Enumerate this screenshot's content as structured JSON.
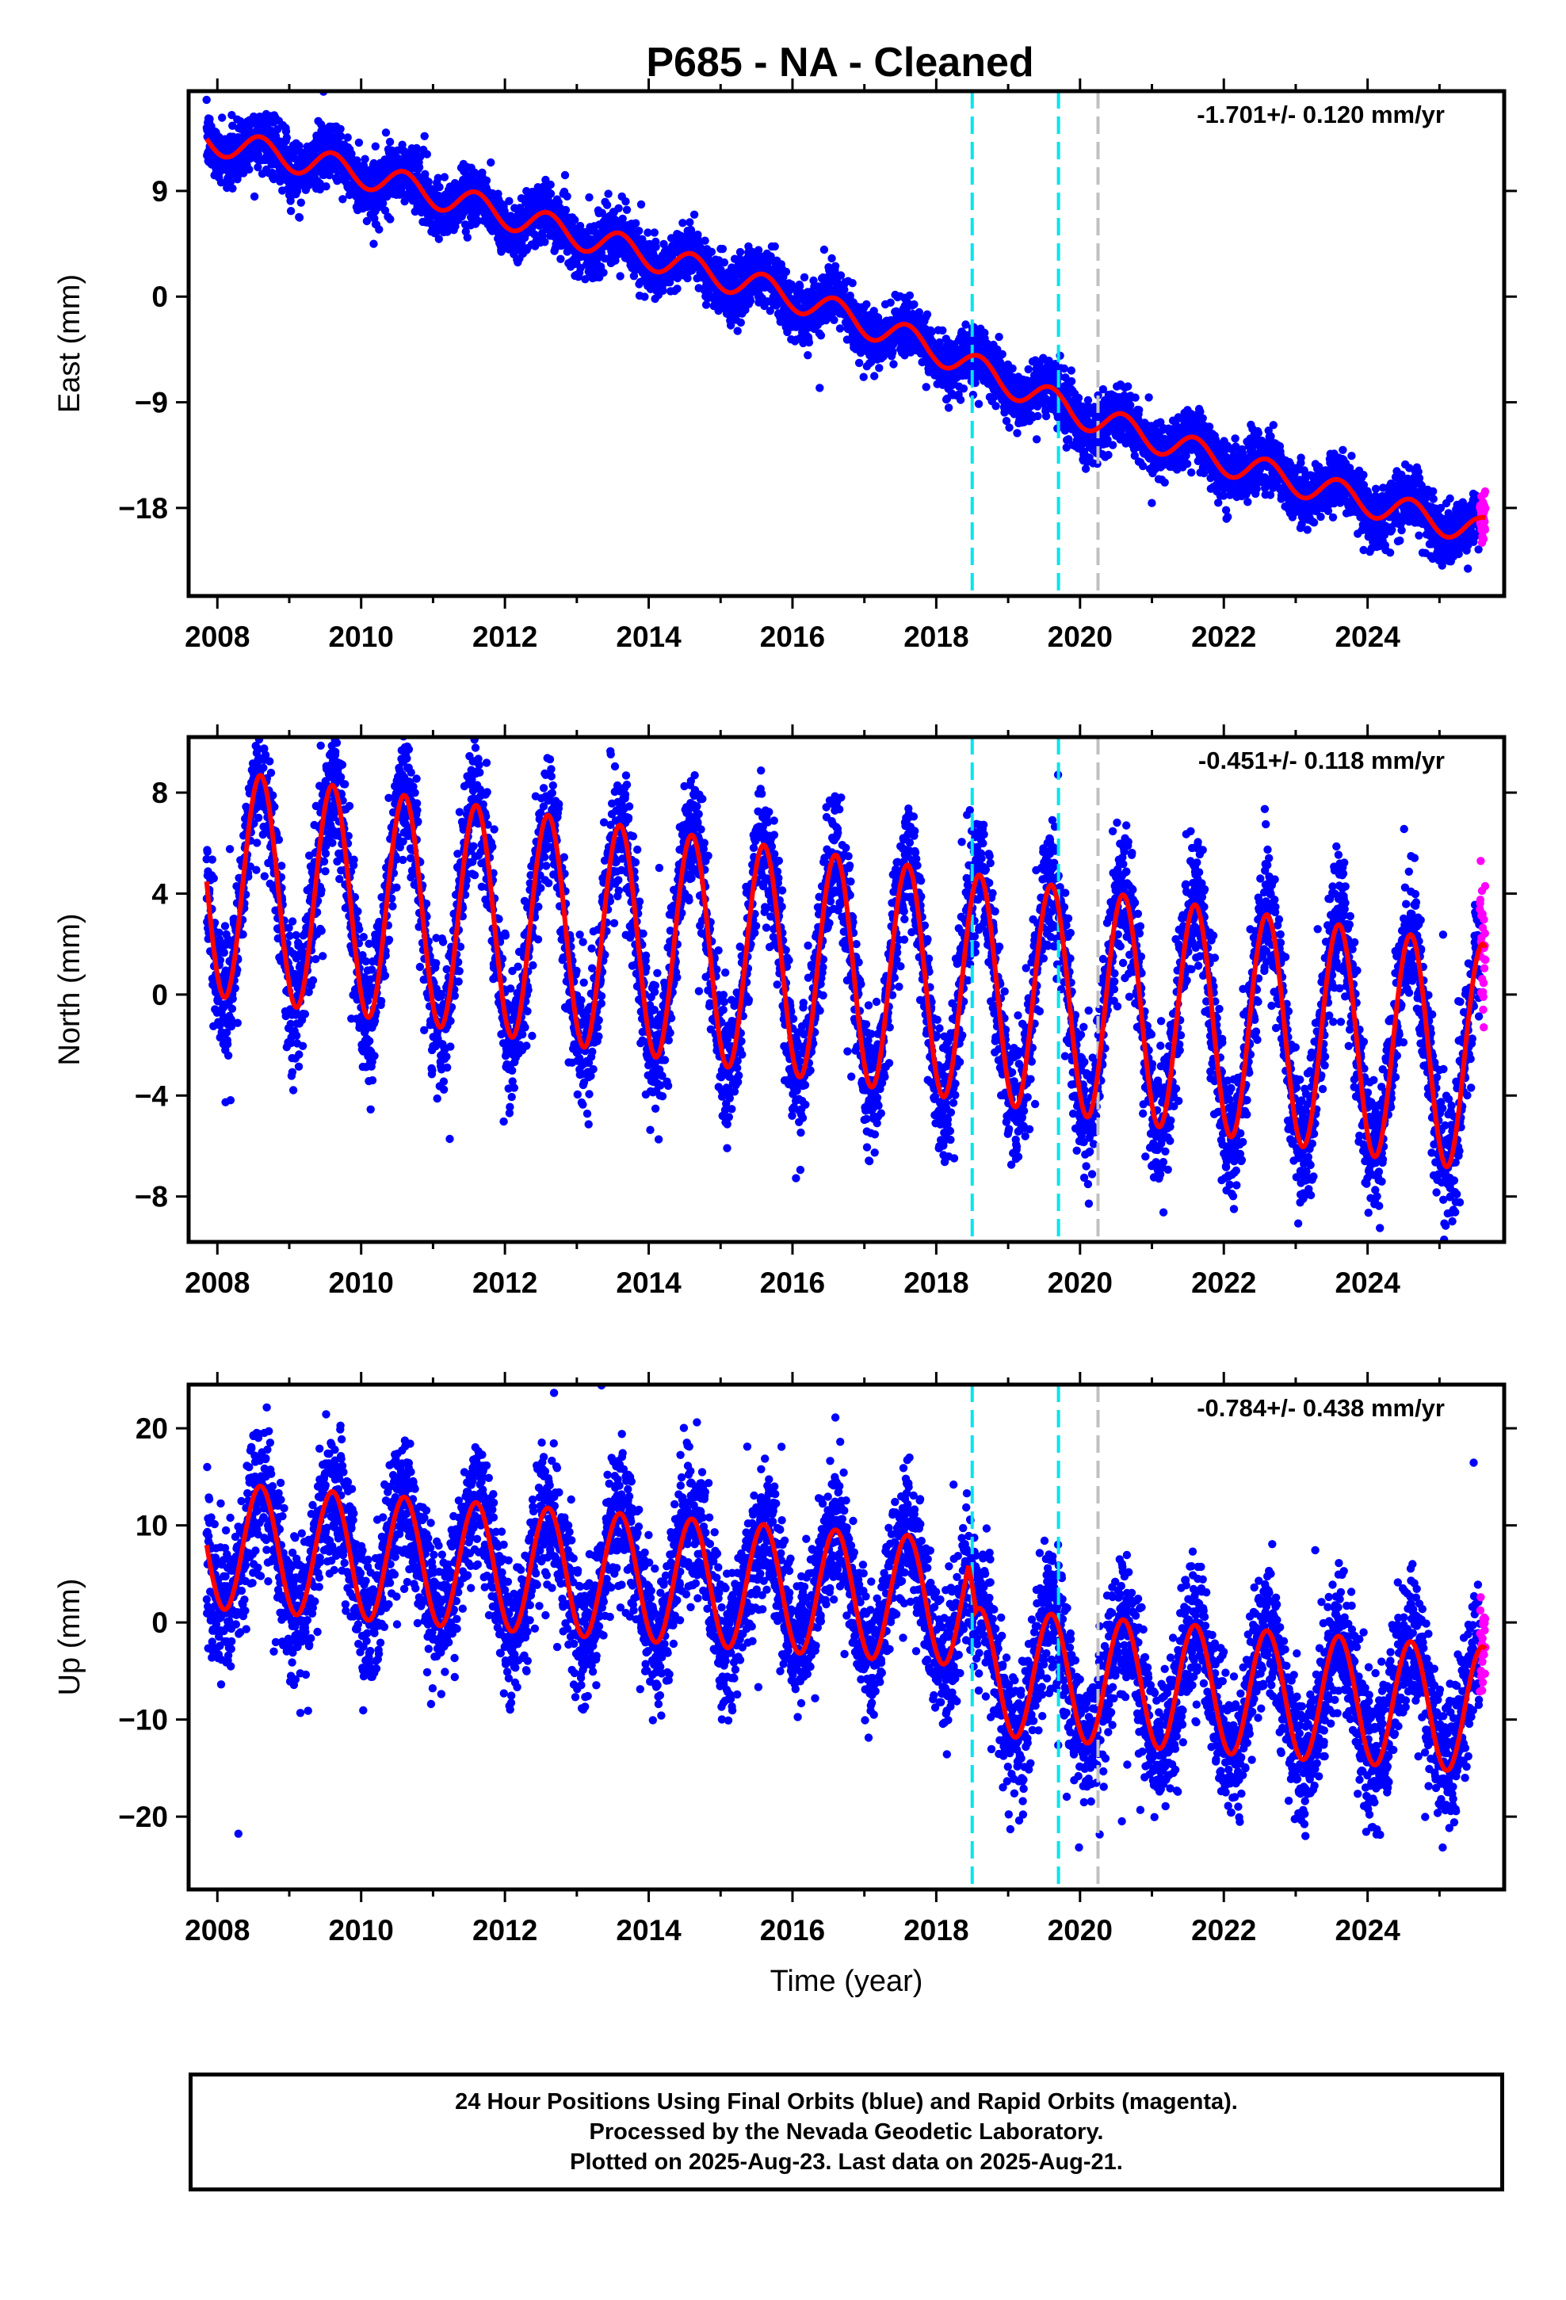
{
  "title": "P685  - NA - Cleaned",
  "colors": {
    "final_orbits": "#0000ff",
    "rapid_orbits": "#ff00ff",
    "model": "#ff0000",
    "offset_antenna": "#00e5ee",
    "offset_other": "#c0c0c0",
    "axes": "#000000"
  },
  "chart_data": [
    {
      "type": "scatter",
      "component": "east",
      "ylabel": "East (mm)",
      "xlabel": "",
      "rate_label": "-1.701+/- 0.120 mm/yr",
      "xlim": [
        2007.6,
        2025.9
      ],
      "ylim": [
        -25.5,
        17.5
      ],
      "xticks": [
        2008,
        2010,
        2012,
        2014,
        2016,
        2018,
        2020,
        2022,
        2024
      ],
      "yticks": [
        9,
        0,
        -9,
        -18
      ],
      "ytick_labels": [
        "9",
        "0",
        "−9",
        "−18"
      ],
      "trend_knots": [
        [
          2007.8,
          13.5
        ],
        [
          2010,
          10.5
        ],
        [
          2012,
          7
        ],
        [
          2014,
          3.5
        ],
        [
          2016,
          0
        ],
        [
          2018,
          -4.5
        ],
        [
          2018.5,
          -6
        ],
        [
          2020,
          -10
        ],
        [
          2022,
          -14
        ],
        [
          2024,
          -17.5
        ],
        [
          2025.55,
          -20
        ]
      ],
      "annual_amplitude": 1.2,
      "noise": 1.2,
      "offsets": [
        {
          "at": 2018.5,
          "step": 0
        },
        {
          "at": 2019.7,
          "step": 0
        },
        {
          "at": 2020.25,
          "step": -2
        }
      ]
    },
    {
      "type": "scatter",
      "component": "north",
      "ylabel": "North (mm)",
      "xlabel": "",
      "rate_label": "-0.451+/- 0.118 mm/yr",
      "xlim": [
        2007.6,
        2025.9
      ],
      "ylim": [
        -9.8,
        10.2
      ],
      "xticks": [
        2008,
        2010,
        2012,
        2014,
        2016,
        2018,
        2020,
        2022,
        2024
      ],
      "yticks": [
        8,
        4,
        0,
        -4,
        -8
      ],
      "ytick_labels": [
        "8",
        "4",
        "0",
        "−4",
        "−8"
      ],
      "trend_knots": [
        [
          2007.8,
          4.5
        ],
        [
          2025.55,
          -2.5
        ]
      ],
      "annual_amplitude": 4.5,
      "noise": 1.3,
      "offsets": []
    },
    {
      "type": "scatter",
      "component": "up",
      "ylabel": "Up (mm)",
      "xlabel": "Time (year)",
      "rate_label": "-0.784+/- 0.438 mm/yr",
      "xlim": [
        2007.6,
        2025.9
      ],
      "ylim": [
        -27.5,
        24.5
      ],
      "xticks": [
        2008,
        2010,
        2012,
        2014,
        2016,
        2018,
        2020,
        2022,
        2024
      ],
      "yticks": [
        20,
        10,
        0,
        -10,
        -20
      ],
      "ytick_labels": [
        "20",
        "10",
        "0",
        "−10",
        "−20"
      ],
      "trend_knots": [
        [
          2007.8,
          8
        ],
        [
          2018.45,
          2
        ],
        [
          2018.55,
          -5
        ],
        [
          2020.2,
          -6
        ],
        [
          2025.55,
          -9
        ]
      ],
      "annual_amplitude": 6.5,
      "noise": 3.5,
      "offsets": []
    }
  ],
  "offset_lines": [
    {
      "year": 2018.5,
      "kind": "antenna"
    },
    {
      "year": 2019.7,
      "kind": "antenna"
    },
    {
      "year": 2020.25,
      "kind": "other"
    }
  ],
  "rapid_start": 2025.56,
  "data_end": 2025.64,
  "footer": {
    "line1": "24 Hour Positions Using Final Orbits (blue) and Rapid Orbits (magenta).",
    "line2": "Processed by the Nevada Geodetic Laboratory.",
    "line3": "Plotted on 2025-Aug-23. Last data on 2025-Aug-21."
  }
}
